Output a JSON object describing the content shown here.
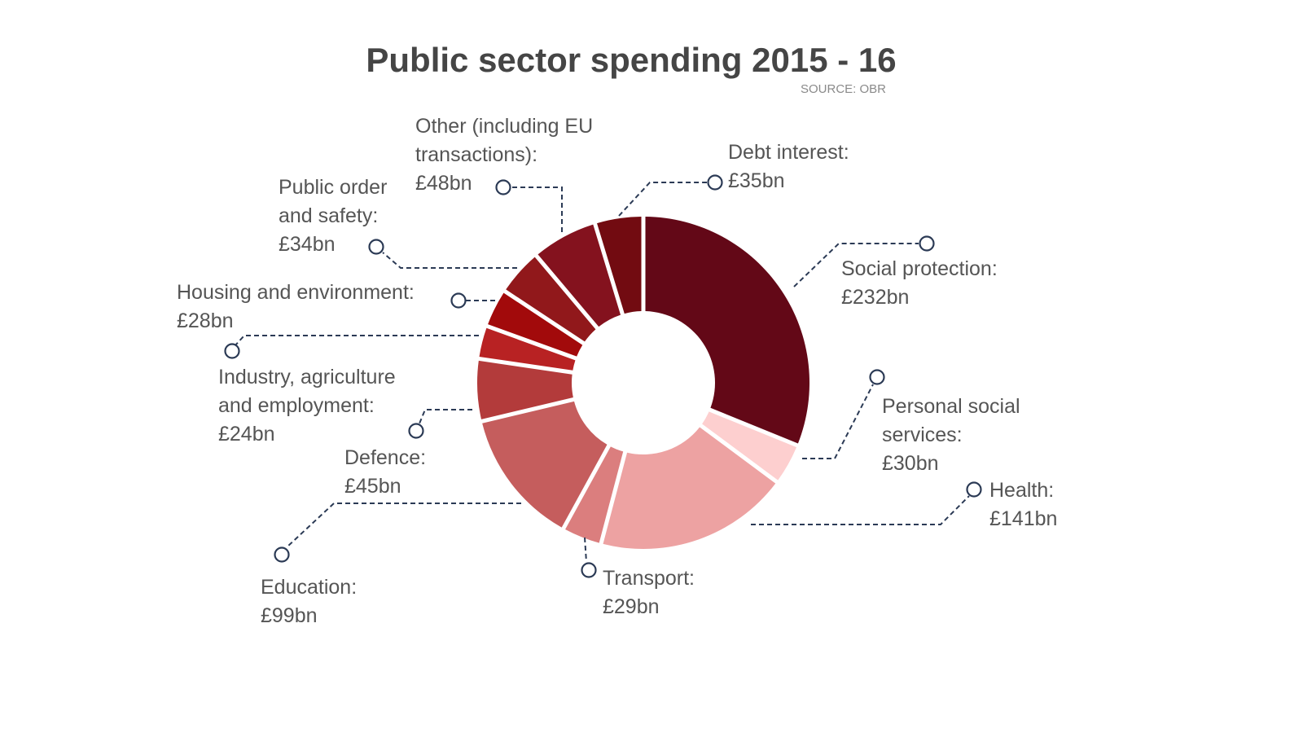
{
  "chart_data": {
    "type": "pie",
    "subtype": "donut",
    "title": "Public sector spending 2015 - 16",
    "source": "SOURCE: OBR",
    "unit": "£bn",
    "legend": "none (leader-line labels)",
    "slices": [
      {
        "name": "Social protection",
        "value": 232,
        "label_lines": [
          "Social protection:",
          "£232bn"
        ],
        "color": "#630817"
      },
      {
        "name": "Personal social services",
        "value": 30,
        "label_lines": [
          "Personal social",
          "services:",
          "£30bn"
        ],
        "color": "#fdcfcf"
      },
      {
        "name": "Health",
        "value": 141,
        "label_lines": [
          "Health:",
          "£141bn"
        ],
        "color": "#eda2a2"
      },
      {
        "name": "Transport",
        "value": 29,
        "label_lines": [
          "Transport:",
          "£29bn"
        ],
        "color": "#db7e7e"
      },
      {
        "name": "Education",
        "value": 99,
        "label_lines": [
          "Education:",
          "£99bn"
        ],
        "color": "#c55d5d"
      },
      {
        "name": "Defence",
        "value": 45,
        "label_lines": [
          "Defence:",
          "£45bn"
        ],
        "color": "#b33b3b"
      },
      {
        "name": "Industry, agriculture and employment",
        "value": 24,
        "label_lines": [
          "Industry, agriculture",
          "and employment:",
          "£24bn"
        ],
        "color": "#b82223"
      },
      {
        "name": "Housing and environment",
        "value": 28,
        "label_lines": [
          "Housing and environment:",
          "£28bn"
        ],
        "color": "#a20a0b"
      },
      {
        "name": "Public order and safety",
        "value": 34,
        "label_lines": [
          "Public order",
          "and safety:",
          "£34bn"
        ],
        "color": "#91181b"
      },
      {
        "name": "Other (including EU transactions)",
        "value": 48,
        "label_lines": [
          "Other (including EU",
          "transactions):",
          "£48bn"
        ],
        "color": "#84121e"
      },
      {
        "name": "Debt interest",
        "value": 35,
        "label_lines": [
          "Debt interest:",
          "£35bn"
        ],
        "color": "#720b11"
      }
    ]
  }
}
